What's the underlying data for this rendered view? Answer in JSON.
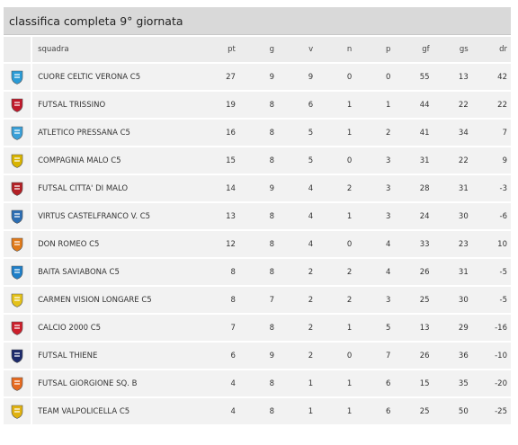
{
  "title": "classifica completa 9° giornata",
  "headers": {
    "team": "squadra",
    "pt": "pt",
    "g": "g",
    "v": "v",
    "n": "n",
    "p": "p",
    "gf": "gf",
    "gs": "gs",
    "dr": "dr"
  },
  "rows": [
    {
      "team": "CUORE CELTIC VERONA C5",
      "pt": "27",
      "g": "9",
      "v": "9",
      "n": "0",
      "p": "0",
      "gf": "55",
      "gs": "13",
      "dr": "42",
      "logo_color": "#2a9bd6"
    },
    {
      "team": "FUTSAL TRISSINO",
      "pt": "19",
      "g": "8",
      "v": "6",
      "n": "1",
      "p": "1",
      "gf": "44",
      "gs": "22",
      "dr": "22",
      "logo_color": "#c0182a"
    },
    {
      "team": "ATLETICO PRESSANA C5",
      "pt": "16",
      "g": "8",
      "v": "5",
      "n": "1",
      "p": "2",
      "gf": "41",
      "gs": "34",
      "dr": "7",
      "logo_color": "#3aa0d8"
    },
    {
      "team": "COMPAGNIA MALO C5",
      "pt": "15",
      "g": "8",
      "v": "5",
      "n": "0",
      "p": "3",
      "gf": "31",
      "gs": "22",
      "dr": "9",
      "logo_color": "#d9b400"
    },
    {
      "team": "FUTSAL CITTA' DI MALO",
      "pt": "14",
      "g": "9",
      "v": "4",
      "n": "2",
      "p": "3",
      "gf": "28",
      "gs": "31",
      "dr": "-3",
      "logo_color": "#b32025"
    },
    {
      "team": "VIRTUS CASTELFRANCO V. C5",
      "pt": "13",
      "g": "8",
      "v": "4",
      "n": "1",
      "p": "3",
      "gf": "24",
      "gs": "30",
      "dr": "-6",
      "logo_color": "#2b6db3"
    },
    {
      "team": "DON ROMEO C5",
      "pt": "12",
      "g": "8",
      "v": "4",
      "n": "0",
      "p": "4",
      "gf": "33",
      "gs": "23",
      "dr": "10",
      "logo_color": "#e07a1a"
    },
    {
      "team": "BAITA SAVIABONA C5",
      "pt": "8",
      "g": "8",
      "v": "2",
      "n": "2",
      "p": "4",
      "gf": "26",
      "gs": "31",
      "dr": "-5",
      "logo_color": "#1f7fc8"
    },
    {
      "team": "CARMEN VISION LONGARE C5",
      "pt": "8",
      "g": "7",
      "v": "2",
      "n": "2",
      "p": "3",
      "gf": "25",
      "gs": "30",
      "dr": "-5",
      "logo_color": "#e5c21a"
    },
    {
      "team": "CALCIO 2000 C5",
      "pt": "7",
      "g": "8",
      "v": "2",
      "n": "1",
      "p": "5",
      "gf": "13",
      "gs": "29",
      "dr": "-16",
      "logo_color": "#cc1f2b"
    },
    {
      "team": "FUTSAL THIENE",
      "pt": "6",
      "g": "9",
      "v": "2",
      "n": "0",
      "p": "7",
      "gf": "26",
      "gs": "36",
      "dr": "-10",
      "logo_color": "#1c2a6b"
    },
    {
      "team": "FUTSAL GIORGIONE Sq. B",
      "pt": "4",
      "g": "8",
      "v": "1",
      "n": "1",
      "p": "6",
      "gf": "15",
      "gs": "35",
      "dr": "-20",
      "logo_color": "#e66a1f"
    },
    {
      "team": "TEAM VALPOLICELLA C5",
      "pt": "4",
      "g": "8",
      "v": "1",
      "n": "1",
      "p": "6",
      "gf": "25",
      "gs": "50",
      "dr": "-25",
      "logo_color": "#e0b210"
    }
  ]
}
